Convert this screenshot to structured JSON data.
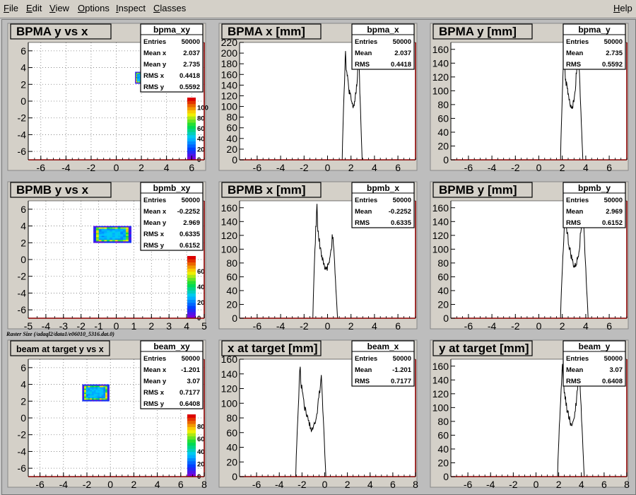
{
  "menu": [
    {
      "id": "file",
      "label": "File"
    },
    {
      "id": "edit",
      "label": "Edit"
    },
    {
      "id": "view",
      "label": "View"
    },
    {
      "id": "options",
      "label": "Options"
    },
    {
      "id": "inspect",
      "label": "Inspect"
    },
    {
      "id": "classes",
      "label": "Classes"
    }
  ],
  "help_label": "Help",
  "raster_caption": "Raster Size (/adaql2/data1/e06010_5316.dat.0)",
  "colors": {
    "axis_frame": "#8b0000",
    "hist_line": "#000000",
    "pad_bg": "#d4d0c8"
  },
  "chart_data": [
    {
      "type": "heatmap",
      "title": "BPMA y vs x",
      "stats": {
        "name": "bpma_xy",
        "rows": [
          [
            "Entries",
            "50000"
          ],
          [
            "Mean x",
            "2.037"
          ],
          [
            "Mean y",
            "2.735"
          ],
          [
            "RMS x",
            "0.4418"
          ],
          [
            "RMS y",
            "0.5592"
          ]
        ]
      },
      "xlim": [
        -7,
        7
      ],
      "ylim": [
        -7,
        7
      ],
      "xticks": [
        "-6",
        "-4",
        "-2",
        "0",
        "2",
        "4",
        "6"
      ],
      "yticks": [
        "-6",
        "-4",
        "-2",
        "0",
        "2",
        "4",
        "6"
      ],
      "grid": true,
      "blob": {
        "x_min": 1.5,
        "x_max": 2.6,
        "y_min": 2.1,
        "y_max": 3.5
      },
      "palette_ticks": [
        "0",
        "20",
        "40",
        "60",
        "80",
        "100"
      ]
    },
    {
      "type": "line",
      "title": "BPMA x [mm]",
      "stats": {
        "name": "bpma_x",
        "rows": [
          [
            "Entries",
            "50000"
          ],
          [
            "Mean",
            "2.037"
          ],
          [
            "RMS",
            "0.4418"
          ]
        ]
      },
      "xlim": [
        -7.5,
        7.5
      ],
      "ylim": [
        0,
        220
      ],
      "xticks": [
        "-6",
        "-4",
        "-2",
        "0",
        "2",
        "4",
        "6"
      ],
      "yticks": [
        "0",
        "20",
        "40",
        "60",
        "80",
        "100",
        "120",
        "140",
        "160",
        "180",
        "200",
        "220"
      ],
      "shape": {
        "rise": 1.25,
        "peak1": 1.55,
        "valley": 2.15,
        "peak2": 2.65,
        "fall": 2.95,
        "peak1_h": 212,
        "valley_h": 100,
        "peak2_h": 197
      }
    },
    {
      "type": "line",
      "title": "BPMA y [mm]",
      "stats": {
        "name": "bpma_y",
        "rows": [
          [
            "Entries",
            "50000"
          ],
          [
            "Mean",
            "2.735"
          ],
          [
            "RMS",
            "0.5592"
          ]
        ]
      },
      "xlim": [
        -7.5,
        7.5
      ],
      "ylim": [
        0,
        170
      ],
      "xticks": [
        "-6",
        "-4",
        "-2",
        "0",
        "2",
        "4",
        "6"
      ],
      "yticks": [
        "0",
        "20",
        "40",
        "60",
        "80",
        "100",
        "120",
        "140",
        "160"
      ],
      "shape": {
        "rise": 1.85,
        "peak1": 2.15,
        "valley": 2.75,
        "peak2": 3.35,
        "fall": 3.75,
        "peak1_h": 163,
        "valley_h": 75,
        "peak2_h": 168
      }
    },
    {
      "type": "heatmap",
      "title": "BPMB y vs x",
      "stats": {
        "name": "bpmb_xy",
        "rows": [
          [
            "Entries",
            "50000"
          ],
          [
            "Mean x",
            "-0.2252"
          ],
          [
            "Mean y",
            "2.969"
          ],
          [
            "RMS x",
            "0.6335"
          ],
          [
            "RMS y",
            "0.6152"
          ]
        ]
      },
      "xlim": [
        -5,
        5
      ],
      "ylim": [
        -7,
        7
      ],
      "xticks": [
        "-5",
        "-4",
        "-3",
        "-2",
        "-1",
        "0",
        "1",
        "2",
        "3",
        "4",
        "5"
      ],
      "yticks": [
        "-6",
        "-4",
        "-2",
        "0",
        "2",
        "4",
        "6"
      ],
      "grid": true,
      "blob": {
        "x_min": -1.3,
        "x_max": 0.85,
        "y_min": 2.0,
        "y_max": 4.0
      },
      "palette_ticks": [
        "0",
        "20",
        "40",
        "60"
      ]
    },
    {
      "type": "line",
      "title": "BPMB x [mm]",
      "stats": {
        "name": "bpmb_x",
        "rows": [
          [
            "Entries",
            "50000"
          ],
          [
            "Mean",
            "-0.2252"
          ],
          [
            "RMS",
            "0.6335"
          ]
        ]
      },
      "xlim": [
        -7.5,
        7.5
      ],
      "ylim": [
        0,
        170
      ],
      "xticks": [
        "-6",
        "-4",
        "-2",
        "0",
        "2",
        "4",
        "6"
      ],
      "yticks": [
        "0",
        "20",
        "40",
        "60",
        "80",
        "100",
        "120",
        "140",
        "160"
      ],
      "shape": {
        "rise": -1.25,
        "peak1": -0.9,
        "valley": -0.2,
        "peak2": 0.45,
        "fall": 0.85,
        "peak1_h": 168,
        "valley_h": 70,
        "peak2_h": 125
      }
    },
    {
      "type": "line",
      "title": "BPMB y [mm]",
      "stats": {
        "name": "bpmb_y",
        "rows": [
          [
            "Entries",
            "50000"
          ],
          [
            "Mean",
            "2.969"
          ],
          [
            "RMS",
            "0.6152"
          ]
        ]
      },
      "xlim": [
        -7.5,
        7.5
      ],
      "ylim": [
        0,
        170
      ],
      "xticks": [
        "-6",
        "-4",
        "-2",
        "0",
        "2",
        "4",
        "6"
      ],
      "yticks": [
        "0",
        "20",
        "40",
        "60",
        "80",
        "100",
        "120",
        "140",
        "160"
      ],
      "shape": {
        "rise": 1.85,
        "peak1": 2.3,
        "valley": 3.0,
        "peak2": 3.75,
        "fall": 4.2,
        "peak1_h": 165,
        "valley_h": 75,
        "peak2_h": 162
      }
    },
    {
      "type": "heatmap",
      "title": "beam at target y vs x",
      "stats": {
        "name": "beam_xy",
        "rows": [
          [
            "Entries",
            "50000"
          ],
          [
            "Mean x",
            "-1.201"
          ],
          [
            "Mean y",
            "3.07"
          ],
          [
            "RMS x",
            "0.7177"
          ],
          [
            "RMS y",
            "0.6408"
          ]
        ]
      },
      "xlim": [
        -7,
        8
      ],
      "ylim": [
        -7,
        7
      ],
      "xticks": [
        "-6",
        "-4",
        "-2",
        "0",
        "2",
        "4",
        "6",
        "8"
      ],
      "yticks": [
        "-6",
        "-4",
        "-2",
        "0",
        "2",
        "4",
        "6"
      ],
      "grid": true,
      "blob": {
        "x_min": -2.4,
        "x_max": -0.1,
        "y_min": 2.0,
        "y_max": 4.0
      },
      "palette_ticks": [
        "0",
        "20",
        "40",
        "60",
        "80"
      ]
    },
    {
      "type": "line",
      "title": "x at target [mm]",
      "stats": {
        "name": "beam_x",
        "rows": [
          [
            "Entries",
            "50000"
          ],
          [
            "Mean",
            "-1.201"
          ],
          [
            "RMS",
            "0.7177"
          ]
        ]
      },
      "xlim": [
        -7.5,
        8
      ],
      "ylim": [
        0,
        160
      ],
      "xticks": [
        "-6",
        "-4",
        "-2",
        "0",
        "2",
        "4",
        "6",
        "8"
      ],
      "yticks": [
        "0",
        "20",
        "40",
        "60",
        "80",
        "100",
        "120",
        "140",
        "160"
      ],
      "shape": {
        "rise": -2.55,
        "peak1": -2.15,
        "valley": -1.2,
        "peak2": -0.3,
        "fall": 0.1,
        "peak1_h": 155,
        "valley_h": 65,
        "peak2_h": 140
      }
    },
    {
      "type": "line",
      "title": "y at target [mm]",
      "stats": {
        "name": "beam_y",
        "rows": [
          [
            "Entries",
            "50000"
          ],
          [
            "Mean",
            "3.07"
          ],
          [
            "RMS",
            "0.6408"
          ]
        ]
      },
      "xlim": [
        -7.5,
        8
      ],
      "ylim": [
        0,
        170
      ],
      "xticks": [
        "-6",
        "-4",
        "-2",
        "0",
        "2",
        "4",
        "6",
        "8"
      ],
      "yticks": [
        "0",
        "20",
        "40",
        "60",
        "80",
        "100",
        "120",
        "140",
        "160"
      ],
      "shape": {
        "rise": 1.9,
        "peak1": 2.35,
        "valley": 3.1,
        "peak2": 3.8,
        "fall": 4.25,
        "peak1_h": 165,
        "valley_h": 75,
        "peak2_h": 162
      }
    }
  ]
}
